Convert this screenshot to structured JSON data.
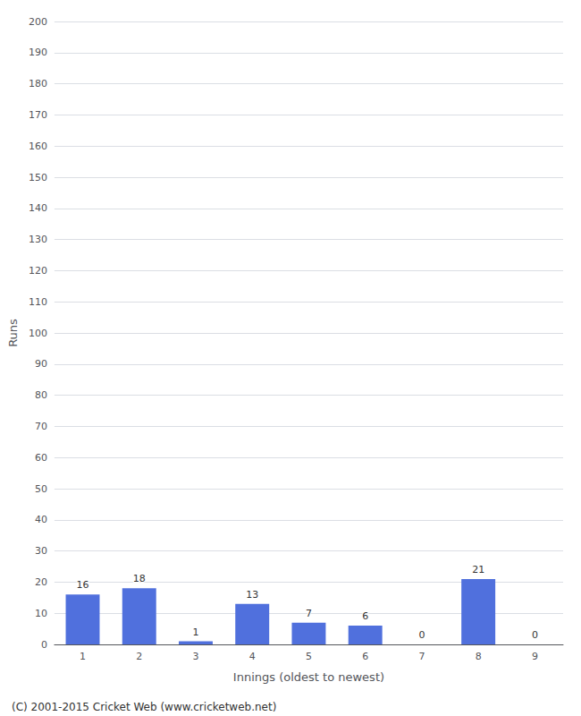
{
  "chart_data": {
    "type": "bar",
    "categories": [
      "1",
      "2",
      "3",
      "4",
      "5",
      "6",
      "7",
      "8",
      "9"
    ],
    "values": [
      16,
      18,
      1,
      13,
      7,
      6,
      0,
      21,
      0
    ],
    "xlabel": "Innings (oldest to newest)",
    "ylabel": "Runs",
    "ylim": [
      0,
      200
    ],
    "yticks": [
      0,
      10,
      20,
      30,
      40,
      50,
      60,
      70,
      80,
      90,
      100,
      110,
      120,
      130,
      140,
      150,
      160,
      170,
      180,
      190,
      200
    ],
    "grid": true,
    "data_labels": true,
    "annotations": [
      "(C) 2001-2015 Cricket Web (www.cricketweb.net)"
    ]
  }
}
